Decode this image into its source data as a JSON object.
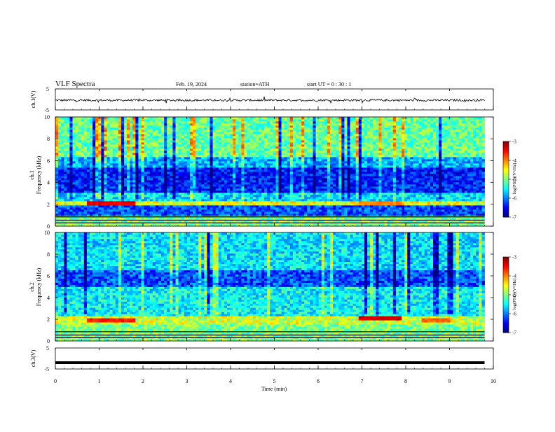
{
  "header": {
    "title": "VLF Spectra",
    "date": "Feb. 19, 2024",
    "station": "station=ATH",
    "start_ut": "start UT = 0 : 30 : 1"
  },
  "chart_data": [
    {
      "type": "line",
      "name": "ch1-waveform",
      "ylabel": "ch.1(V)",
      "ylim": [
        -5,
        5
      ],
      "yticks": [
        "5",
        "-5"
      ],
      "x_range_min": [
        0,
        9.8
      ],
      "baseline_v": -0.4,
      "line_color": "#000000"
    },
    {
      "type": "heatmap",
      "name": "ch1-spectrogram",
      "ylabel": "Frequency (kHz)",
      "channel_label": "ch.1",
      "ylim": [
        0,
        10
      ],
      "yticks": [
        "0",
        "2",
        "4",
        "6",
        "8",
        "10"
      ],
      "x_range_min": [
        0,
        9.8
      ],
      "colorbar": {
        "label": "log(PSD)(V²/Hz)",
        "range": [
          -7,
          -3
        ],
        "ticks": [
          "-3",
          "-4",
          "-5",
          "-6",
          "-7"
        ]
      },
      "dominant_bands_khz": [
        {
          "from": 0,
          "to": 1.0,
          "level": -5.0
        },
        {
          "from": 1.0,
          "to": 2.0,
          "level": -6.2
        },
        {
          "from": 2.0,
          "to": 2.3,
          "level": -4.6
        },
        {
          "from": 2.3,
          "to": 3.0,
          "level": -5.6
        },
        {
          "from": 3.0,
          "to": 5.3,
          "level": -6.4
        },
        {
          "from": 5.3,
          "to": 6.4,
          "level": -5.8
        },
        {
          "from": 6.4,
          "to": 10.0,
          "level": -5.1
        }
      ],
      "hot_segments": [
        {
          "t_from": 0.7,
          "t_to": 1.8,
          "f_khz": 2.2,
          "level": -3.4
        },
        {
          "t_from": 6.9,
          "t_to": 7.9,
          "f_khz": 2.2,
          "level": -4.0
        }
      ]
    },
    {
      "type": "heatmap",
      "name": "ch2-spectrogram",
      "ylabel": "Frequency (kHz)",
      "channel_label": "ch.2",
      "ylim": [
        0,
        10
      ],
      "yticks": [
        "0",
        "2",
        "4",
        "6",
        "8",
        "10"
      ],
      "x_range_min": [
        0,
        9.8
      ],
      "colorbar": {
        "label": "log(PSD)(V²/Hz)",
        "range": [
          -7,
          -3
        ],
        "ticks": [
          "-3",
          "-4",
          "-5",
          "-6",
          "-7"
        ]
      },
      "dominant_bands_khz": [
        {
          "from": 0,
          "to": 1.5,
          "level": -5.0
        },
        {
          "from": 1.5,
          "to": 2.4,
          "level": -4.7
        },
        {
          "from": 2.4,
          "to": 5.0,
          "level": -5.5
        },
        {
          "from": 5.0,
          "to": 6.5,
          "level": -6.2
        },
        {
          "from": 6.5,
          "to": 10.0,
          "level": -5.6
        }
      ],
      "hot_segments": [
        {
          "t_from": 0.7,
          "t_to": 1.8,
          "f_khz": 2.0,
          "level": -3.6
        },
        {
          "t_from": 6.9,
          "t_to": 7.9,
          "f_khz": 2.1,
          "level": -3.3
        },
        {
          "t_from": 8.3,
          "t_to": 9.0,
          "f_khz": 1.9,
          "level": -3.9
        }
      ]
    },
    {
      "type": "line",
      "name": "ch3-waveform",
      "ylabel": "ch.3(V)",
      "ylim": [
        -5,
        5
      ],
      "yticks": [
        "5",
        "-5"
      ],
      "x_range_min": [
        0,
        9.8
      ],
      "baseline_v": -2.0,
      "line_color": "#000000"
    }
  ],
  "x_axis": {
    "label": "Time (min)",
    "range": [
      0,
      10
    ],
    "ticks": [
      "0",
      "1",
      "2",
      "3",
      "4",
      "5",
      "6",
      "7",
      "8",
      "9",
      "10"
    ]
  }
}
